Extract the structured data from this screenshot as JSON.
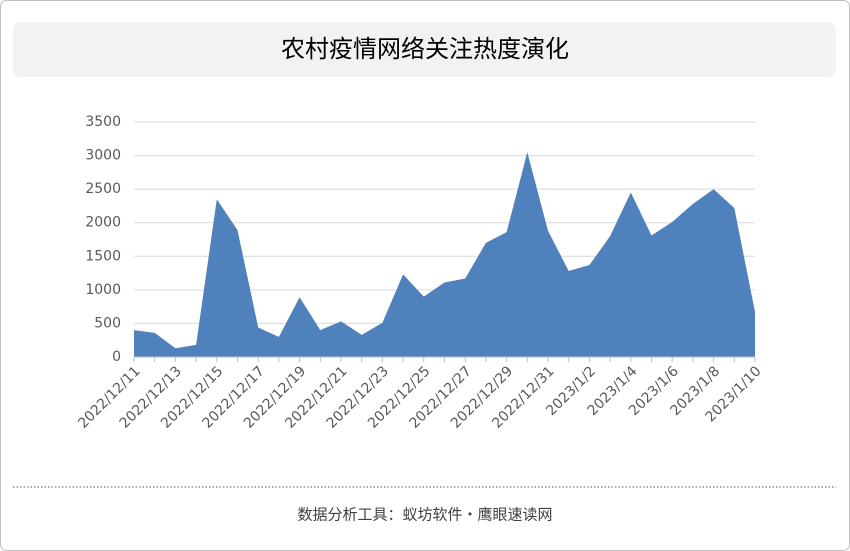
{
  "chart_data": {
    "type": "area",
    "title": "农村疫情网络关注热度演化",
    "categories": [
      "2022/12/11",
      null,
      "2022/12/13",
      null,
      "2022/12/15",
      null,
      "2022/12/17",
      null,
      "2022/12/19",
      null,
      "2022/12/21",
      null,
      "2022/12/23",
      null,
      "2022/12/25",
      null,
      "2022/12/27",
      null,
      "2022/12/29",
      null,
      "2022/12/31",
      null,
      "2023/1/2",
      null,
      "2023/1/4",
      null,
      "2023/1/6",
      null,
      "2023/1/8",
      null,
      "2023/1/10"
    ],
    "values": [
      400,
      360,
      130,
      180,
      2350,
      1890,
      440,
      300,
      890,
      400,
      530,
      330,
      510,
      1230,
      900,
      1110,
      1170,
      1700,
      1860,
      3050,
      1880,
      1280,
      1370,
      1800,
      2450,
      1810,
      2010,
      2280,
      2500,
      2220,
      670
    ],
    "color": "#4f81bd",
    "ylim": [
      0,
      3500
    ],
    "yticks": [
      0,
      500,
      1000,
      1500,
      2000,
      2500,
      3000,
      3500
    ],
    "grid": true
  },
  "footer": "数据分析工具：蚁坊软件・鹰眼速读网"
}
